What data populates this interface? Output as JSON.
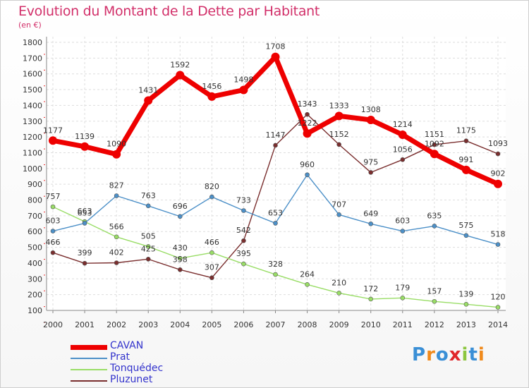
{
  "title": "Evolution du Montant de la Dette par Habitant",
  "subtitle": "(en €)",
  "logo_text": "Proxiti",
  "chart_data": {
    "type": "line",
    "title": "Evolution du Montant de la Dette par Habitant",
    "ylabel": "(en €)",
    "xlabel": "",
    "ylim": [
      100,
      1800
    ],
    "yticks": [
      100,
      200,
      300,
      400,
      500,
      600,
      700,
      800,
      900,
      1000,
      1100,
      1200,
      1300,
      1400,
      1500,
      1600,
      1700,
      1800
    ],
    "grid": true,
    "legend_position": "bottom-left",
    "categories": [
      "2000",
      "2001",
      "2002",
      "2003",
      "2004",
      "2005",
      "2006",
      "2007",
      "2008",
      "2009",
      "2010",
      "2011",
      "2012",
      "2013",
      "2014"
    ],
    "series": [
      {
        "name": "CAVAN",
        "color": "#ee0000",
        "values": [
          1177,
          1139,
          1090,
          1431,
          1592,
          1456,
          1498,
          1708,
          1222,
          1333,
          1308,
          1214,
          1092,
          991,
          902
        ]
      },
      {
        "name": "Prat",
        "color": "#4c90c8",
        "values": [
          603,
          653,
          827,
          763,
          696,
          820,
          733,
          653,
          960,
          707,
          649,
          603,
          635,
          575,
          518
        ]
      },
      {
        "name": "Tonquédec",
        "color": "#99dd66",
        "values": [
          757,
          663,
          566,
          505,
          430,
          466,
          395,
          328,
          264,
          210,
          172,
          179,
          157,
          139,
          120
        ]
      },
      {
        "name": "Pluzunet",
        "color": "#7a2e2e",
        "values": [
          466,
          399,
          402,
          425,
          358,
          307,
          542,
          1147,
          1343,
          1152,
          975,
          1056,
          1151,
          1175,
          1093
        ]
      }
    ]
  }
}
